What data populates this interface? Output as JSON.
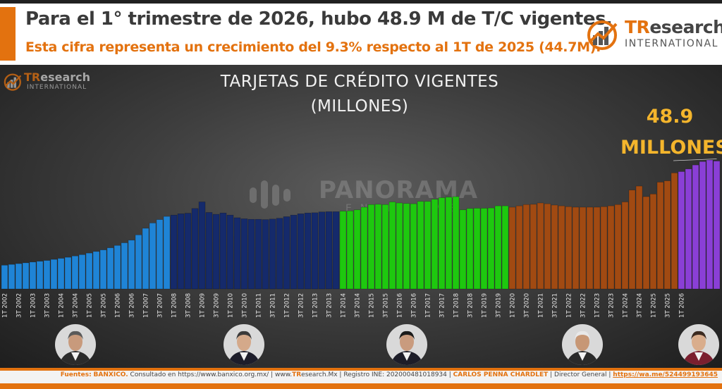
{
  "header": {
    "headline": "Para el 1° trimestre de 2026, hubo 48.9 M de T/C vigentes.",
    "subline": "Esta cifra representa un crecimiento del 9.3% respecto al 1T de 2025 (44.7M).",
    "logo_brand_tr": "TR",
    "logo_brand_rest": "esearch",
    "logo_sub": "INTERNATIONAL"
  },
  "watermark": {
    "text": "PANORAMA",
    "sub": "EN BREVE"
  },
  "colors": {
    "fox": "#1f84d6",
    "calderon": "#152a6b",
    "pena_nieto": "#1ec80f",
    "amlo": "#a14a12",
    "sheinbaum": "#8a3fd6",
    "accent": "#e3720f",
    "callout": "#f4b52c"
  },
  "callout": {
    "value": "48.9",
    "unit": "MILLONES"
  },
  "avatars": [
    {
      "name": "fox-avatar",
      "skin": "#c89a7c",
      "hair": "#5a5a5a",
      "suit": "#2b2b2b"
    },
    {
      "name": "calderon-avatar",
      "skin": "#d4a98a",
      "hair": "#3a3a3a",
      "suit": "#1d1d2a"
    },
    {
      "name": "pena-nieto-avatar",
      "skin": "#c99b7e",
      "hair": "#1b1b1b",
      "suit": "#1d1d28"
    },
    {
      "name": "amlo-avatar",
      "skin": "#c79775",
      "hair": "#e8e8e8",
      "suit": "#2a2a2a"
    },
    {
      "name": "sheinbaum-avatar",
      "skin": "#d9ad8c",
      "hair": "#3b2a20",
      "suit": "#7b1f2f"
    }
  ],
  "footer": {
    "fuentes_label": "Fuentes:",
    "fuentes_src": "BANXICO.",
    "consultado": "Consultado en https://www.banxico.org.mx/",
    "web_pre": "www.",
    "web_tr": "TR",
    "web_rest": "esearch.Mx",
    "registro": "Registro INE: 202000481018934",
    "author": "CARLOS PENNA CHARDLET",
    "role": "Director General",
    "link": "https://wa.me/524499193645"
  },
  "chart_data": {
    "type": "bar",
    "title": "TARJETAS DE CRÉDITO VIGENTES",
    "subtitle": "(MILLONES)",
    "xlabel": "",
    "ylabel": "",
    "ylim": [
      0,
      62
    ],
    "grid": false,
    "legend": "none",
    "x_tick_labels": [
      "1T 2002",
      "3T 2002",
      "1T 2003",
      "3T 2003",
      "1T 2004",
      "3T 2004",
      "1T 2005",
      "3T 2005",
      "1T 2006",
      "3T 2006",
      "1T 2007",
      "3T 2007",
      "1T 2008",
      "3T 2008",
      "1T 2009",
      "3T 2009",
      "1T 2010",
      "3T 2010",
      "1T 2011",
      "3T 2011",
      "1T 2012",
      "3T 2012",
      "1T 2013",
      "3T 2013",
      "1T 2014",
      "3T 2014",
      "1T 2015",
      "3T 2015",
      "1T 2016",
      "3T 2016",
      "1T 2017",
      "3T 2017",
      "1T 2018",
      "3T 2018",
      "1T 2019",
      "3T 2019",
      "1T 2020",
      "3T 2020",
      "1T 2021",
      "3T 2021",
      "1T 2022",
      "3T 2022",
      "1T 2023",
      "3T 2023",
      "1T 2024",
      "3T 2024",
      "1T 2025",
      "3T 2025",
      "1T 2026"
    ],
    "series": [
      {
        "values": [
          9.0,
          9.3,
          9.6,
          9.9,
          10.2,
          10.5,
          10.8,
          11.2,
          11.6,
          12.0,
          12.5,
          13.0,
          13.6,
          14.2,
          14.8,
          15.6,
          16.5,
          17.5,
          18.5,
          20.5,
          23.0,
          25.0,
          26.3,
          27.5
        ]
      },
      {
        "values": [
          28.0,
          28.5,
          28.7,
          30.5,
          33.0,
          29.0,
          28.3,
          28.8,
          28.0,
          27.0,
          26.6,
          26.4,
          26.4,
          26.3,
          26.5,
          26.8,
          27.4,
          28.0,
          28.5,
          28.8,
          28.9,
          29.2,
          29.3,
          29.3
        ]
      },
      {
        "values": [
          29.5,
          29.6,
          30.0,
          31.0,
          32.0,
          32.1,
          32.0,
          33.0,
          32.6,
          32.4,
          32.3,
          33.2,
          33.2,
          34.0,
          34.6,
          34.8,
          35.0,
          30.0,
          30.5,
          30.6,
          30.6,
          30.7,
          31.5,
          31.5
        ]
      },
      {
        "values": [
          31.0,
          31.5,
          32.0,
          32.1,
          32.6,
          32.3,
          31.8,
          31.5,
          31.2,
          31.0,
          31.0,
          31.0,
          31.0,
          31.2,
          31.5,
          32.0,
          33.0,
          37.5,
          39.0,
          35.0,
          36.0,
          40.5,
          41.0,
          44.0
        ]
      },
      {
        "values": [
          44.5,
          45.5,
          47.0,
          48.3,
          48.9,
          48.5
        ]
      }
    ]
  }
}
